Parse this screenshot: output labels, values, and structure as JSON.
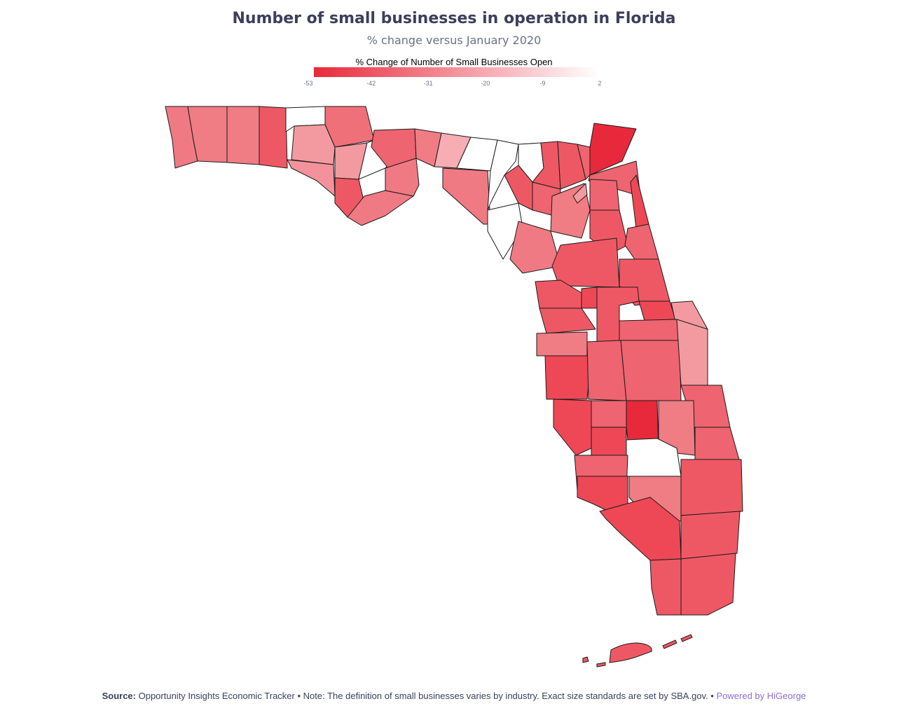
{
  "chart_data": {
    "type": "choropleth",
    "title": "Number of small businesses in operation in Florida",
    "subtitle": "% change versus January 2020",
    "legend": {
      "title": "% Change of Number of Small Businesses Open",
      "min": -53,
      "max": 2,
      "ticks": [
        -53,
        -42,
        -31,
        -20,
        -9,
        2
      ],
      "color_low": "#e8293b",
      "color_high": "#ffffff",
      "placement": "top-center"
    }
  },
  "footer": {
    "source_label": "Source:",
    "text": "Opportunity Insights Economic Tracker • Note: The definition of small businesses varies by industry. Exact size standards are set by SBA.gov. •",
    "link": "Powered by HiGeorge"
  }
}
